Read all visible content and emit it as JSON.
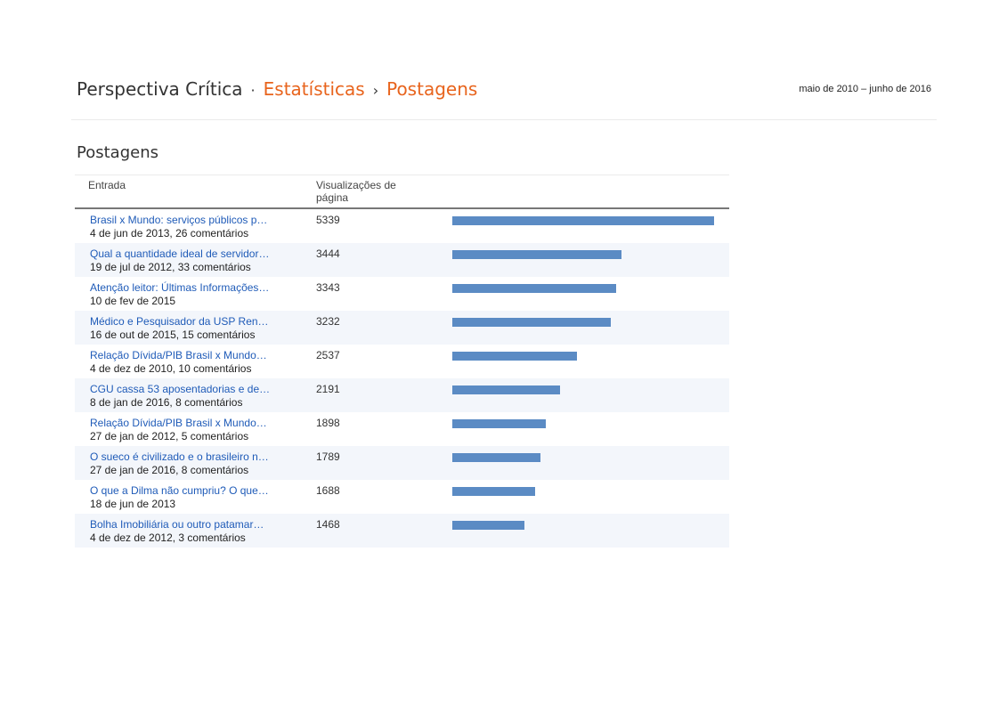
{
  "header": {
    "blog_name": "Perspectiva Crítica",
    "separator_1": "·",
    "crumb_stats": "Estatísticas",
    "separator_2": "›",
    "crumb_posts": "Postagens",
    "date_range": "maio de 2010 – junho de 2016"
  },
  "section": {
    "title": "Postagens",
    "col_entry": "Entrada",
    "col_views": "Visualizações de página"
  },
  "colors": {
    "link": "#1f5bb8",
    "breadcrumb_accent": "#e8641d",
    "bar": "#5b8bc4",
    "row_alt": "#f3f6fb"
  },
  "max_views": 5339,
  "rows": [
    {
      "title": "Brasil x Mundo: serviços públicos p…",
      "meta": "4 de jun de 2013, 26 comentários",
      "views": 5339
    },
    {
      "title": "Qual a quantidade ideal de servidor…",
      "meta": "19 de jul de 2012, 33 comentários",
      "views": 3444
    },
    {
      "title": "Atenção leitor: Últimas Informações…",
      "meta": "10 de fev de 2015",
      "views": 3343
    },
    {
      "title": "Médico e Pesquisador da USP Ren…",
      "meta": "16 de out de 2015, 15 comentários",
      "views": 3232
    },
    {
      "title": "Relação Dívida/PIB Brasil x Mundo…",
      "meta": "4 de dez de 2010, 10 comentários",
      "views": 2537
    },
    {
      "title": "CGU cassa 53 aposentadorias e de…",
      "meta": "8 de jan de 2016, 8 comentários",
      "views": 2191
    },
    {
      "title": "Relação Dívida/PIB Brasil x Mundo…",
      "meta": "27 de jan de 2012, 5 comentários",
      "views": 1898
    },
    {
      "title": "O sueco é civilizado e o brasileiro n…",
      "meta": "27 de jan de 2016, 8 comentários",
      "views": 1789
    },
    {
      "title": "O que a Dilma não cumpriu? O que…",
      "meta": "18 de jun de 2013",
      "views": 1688
    },
    {
      "title": "Bolha Imobiliária ou outro patamar…",
      "meta": "4 de dez de 2012, 3 comentários",
      "views": 1468
    }
  ]
}
